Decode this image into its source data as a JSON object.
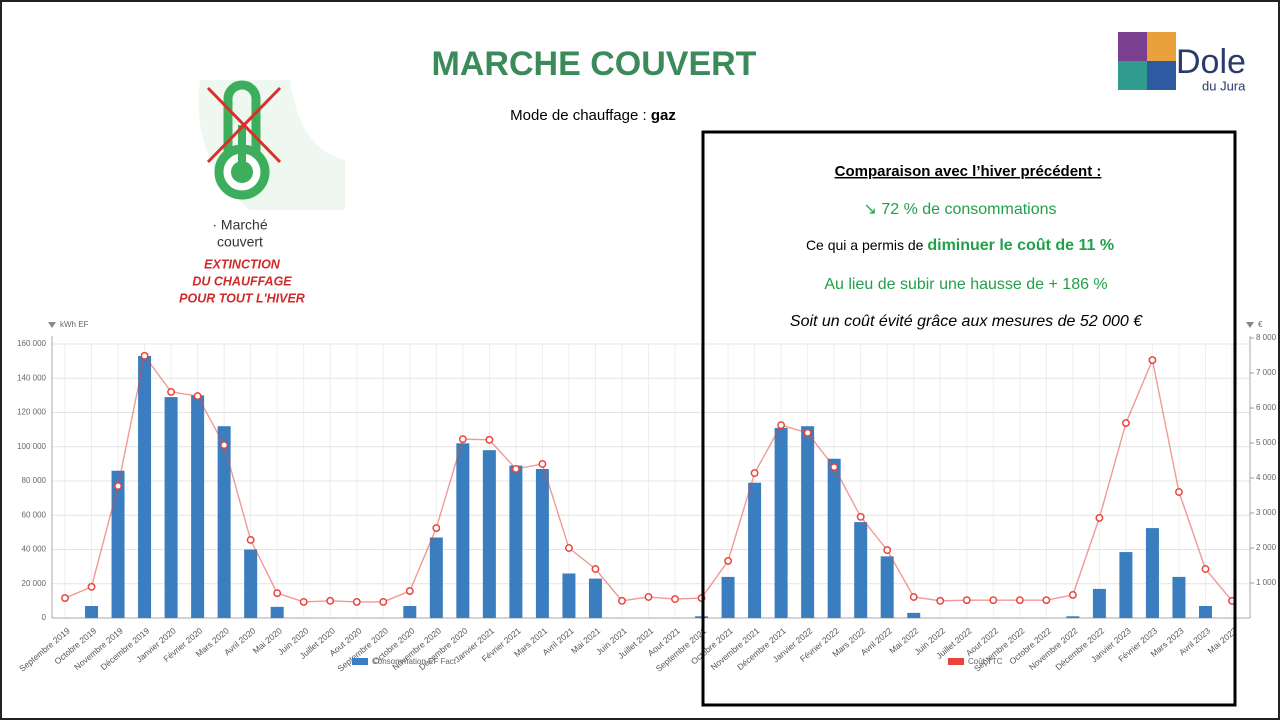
{
  "header": {
    "title": "MARCHE COUVERT",
    "mode_label": "Mode de chauffage : ",
    "mode_value": "gaz"
  },
  "icon": {
    "caption": [
      "· Marché",
      "couvert"
    ],
    "warning": [
      "EXTINCTION",
      "DU CHAUFFAGE",
      "POUR TOUT L'HIVER"
    ]
  },
  "logo": {
    "name": "Dole",
    "sub": "du Jura"
  },
  "summary": {
    "title": "Comparaison avec l’hiver précédent :",
    "line1": "↘ 72 % de consommations",
    "line2_start": "Ce qui a permis de ",
    "line2_bold": "diminuer le coût de 11 %",
    "line3": "Au lieu de subir une hausse de + 186 %",
    "line4": "Soit un coût évité grâce aux mesures de 52 000 €"
  },
  "chart_data": {
    "type": "combo",
    "y_label": "kWh EF",
    "y2_label": "€",
    "categories": [
      "Septembre 2019",
      "Octobre 2019",
      "Novembre 2019",
      "Décembre 2019",
      "Janvier 2020",
      "Février 2020",
      "Mars 2020",
      "Avril 2020",
      "Mai 2020",
      "Juin 2020",
      "Juillet 2020",
      "Aout 2020",
      "Septembre 2020",
      "Octobre 2020",
      "Novembre 2020",
      "Décembre 2020",
      "Janvier 2021",
      "Février 2021",
      "Mars 2021",
      "Avril 2021",
      "Mai 2021",
      "Juin 2021",
      "Juillet 2021",
      "Aout 2021",
      "Septembre 2021",
      "Octobre 2021",
      "Novembre 2021",
      "Décembre 2021",
      "Janvier 2022",
      "Février 2022",
      "Mars 2022",
      "Avril 2022",
      "Mai 2022",
      "Juin 2022",
      "Juillet 2022",
      "Aout 2022",
      "Septembre 2022",
      "Octobre 2022",
      "Novembre 2022",
      "Décembre 2022",
      "Janvier 2023",
      "Février 2023",
      "Mars 2023",
      "Avril 2023",
      "Mai 2023"
    ],
    "series": [
      {
        "name": "Consommation EF Fact",
        "type": "bar",
        "color": "#3a7ebf",
        "values": [
          0,
          7000,
          86000,
          153000,
          129000,
          130000,
          112000,
          40000,
          6500,
          0,
          0,
          0,
          0,
          7000,
          47000,
          102000,
          98000,
          89000,
          87000,
          26000,
          23000,
          0,
          0,
          0,
          1000,
          24000,
          79000,
          111000,
          112000,
          93000,
          56000,
          36000,
          3000,
          0,
          0,
          0,
          0,
          0,
          1000,
          17000,
          38500,
          52500,
          24000,
          7000,
          0
        ]
      },
      {
        "name": "Coût TTC",
        "type": "line",
        "axis": "y2",
        "color": "#e8453c",
        "values": [
          570,
          890,
          3770,
          7490,
          6460,
          6340,
          4940,
          2230,
          710,
          460,
          490,
          460,
          460,
          770,
          2570,
          5110,
          5090,
          4260,
          4400,
          2000,
          1400,
          490,
          600,
          540,
          570,
          1630,
          4140,
          5510,
          5290,
          4310,
          2890,
          1940,
          600,
          490,
          510,
          510,
          510,
          510,
          660,
          2860,
          5570,
          7370,
          3600,
          1400,
          490
        ]
      }
    ],
    "ylim": [
      0,
      160000
    ],
    "yticks": [
      0,
      {
        "value": 20000,
        "label": "20 000"
      },
      {
        "value": 40000,
        "label": "40 000"
      },
      {
        "value": 60000,
        "label": "60 000"
      },
      {
        "value": 80000,
        "label": "80 000"
      },
      {
        "value": 100000,
        "label": "100 000"
      },
      {
        "value": 120000,
        "label": "120 000"
      },
      {
        "value": 140000,
        "label": "140 000"
      },
      {
        "value": 160000,
        "label": "160 000"
      }
    ],
    "y2lim": [
      0,
      8000
    ],
    "y2ticks": [
      {
        "value": 1000,
        "label": "1 000"
      },
      {
        "value": 2000,
        "label": "2 000"
      },
      {
        "value": 3000,
        "label": "3 000"
      },
      {
        "value": 4000,
        "label": "4 000"
      },
      {
        "value": 5000,
        "label": "5 000"
      },
      {
        "value": 6000,
        "label": "6 000"
      },
      {
        "value": 7000,
        "label": "7 000"
      },
      {
        "value": 8000,
        "label": "8 000"
      }
    ],
    "grid": true
  }
}
